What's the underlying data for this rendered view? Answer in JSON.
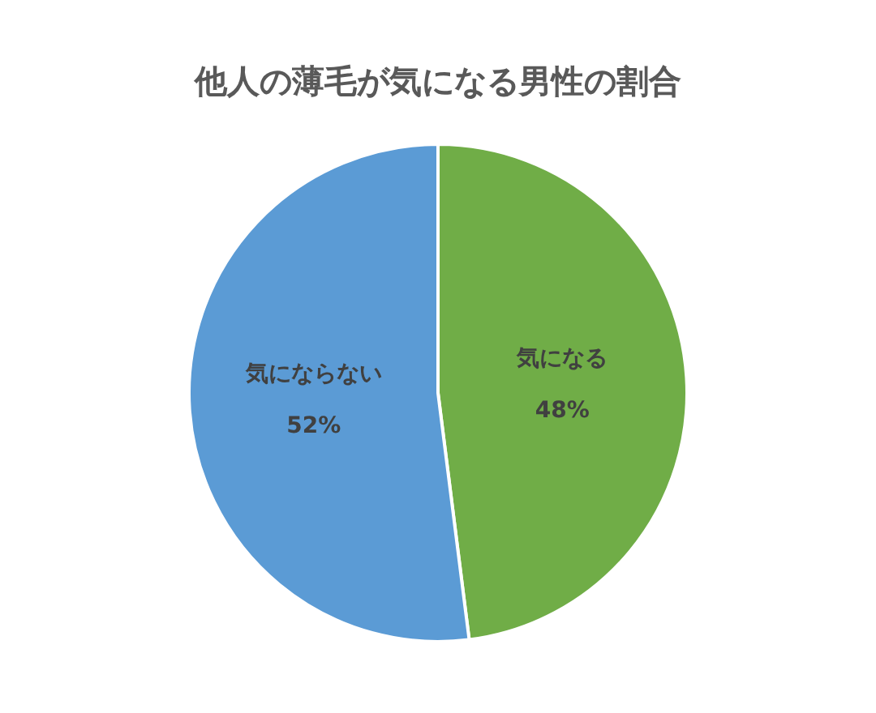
{
  "chart_data": {
    "type": "pie",
    "title": "他人の薄毛が気になる男性の割合",
    "categories": [
      "気になる",
      "気にならない"
    ],
    "values": [
      48,
      52
    ],
    "colors": [
      "#70ad47",
      "#5b9bd5"
    ],
    "value_labels": [
      "48%",
      "52%"
    ],
    "legend": false
  }
}
